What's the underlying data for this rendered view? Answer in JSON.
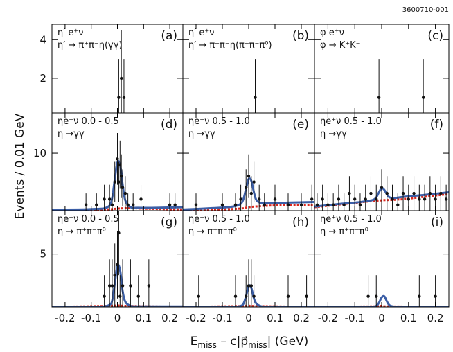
{
  "id_label": "3600710-001",
  "y_label": "Events / 0.01 GeV",
  "x_label_parts": [
    "E",
    "miss",
    " – c|p⃗",
    "miss",
    "| (GeV)"
  ],
  "chart_data": [
    {
      "type": "errorbar",
      "panel_label": "(a)",
      "lines": [
        "η′ e⁺ν",
        "η′ → π⁺π⁻η(γγ)"
      ],
      "xlim": [
        -0.25,
        0.25
      ],
      "ylim": [
        0.2,
        4.8
      ],
      "xticks": [
        -0.2,
        -0.1,
        0,
        0.1,
        0.2
      ],
      "yticks": [
        2,
        4
      ],
      "x": [
        0.005,
        0.015,
        0.025
      ],
      "values": [
        1,
        2,
        1
      ],
      "errors": [
        2,
        2.5,
        2
      ]
    },
    {
      "type": "errorbar",
      "panel_label": "(b)",
      "lines": [
        "η′ e⁺ν",
        "η′ → π⁺π⁻η(π⁺π⁻π⁰)"
      ],
      "xlim": [
        -0.25,
        0.25
      ],
      "ylim": [
        0.2,
        4.8
      ],
      "xticks": [
        -0.2,
        -0.1,
        0,
        0.1,
        0.2
      ],
      "yticks": [
        2,
        4
      ],
      "x": [
        0.025
      ],
      "values": [
        1
      ],
      "errors": [
        2
      ]
    },
    {
      "type": "errorbar",
      "panel_label": "(c)",
      "lines": [
        "φ e⁺ν",
        "φ → K⁺K⁻"
      ],
      "xlim": [
        -0.25,
        0.25
      ],
      "ylim": [
        0.2,
        4.8
      ],
      "xticks": [
        -0.2,
        -0.1,
        0,
        0.1,
        0.2
      ],
      "yticks": [
        2,
        4
      ],
      "x": [
        -0.01,
        0.155
      ],
      "values": [
        1,
        1
      ],
      "errors": [
        2,
        2
      ]
    },
    {
      "type": "errorbar",
      "panel_label": "(d)",
      "lines": [
        "ηe⁺ν 0.0 - 0.5",
        "η →γγ"
      ],
      "xlim": [
        -0.25,
        0.25
      ],
      "ylim": [
        0,
        17
      ],
      "xticks": [
        -0.2,
        -0.1,
        0,
        0.1,
        0.2
      ],
      "yticks": [
        10
      ],
      "x": [
        -0.12,
        -0.08,
        -0.05,
        -0.03,
        -0.02,
        -0.01,
        0,
        0.005,
        0.01,
        0.015,
        0.02,
        0.03,
        0.04,
        0.06,
        0.09,
        0.2,
        0.22
      ],
      "values": [
        1,
        1,
        2,
        2,
        1,
        5,
        9,
        5,
        8,
        6,
        4,
        3,
        1,
        1,
        2,
        1,
        1
      ],
      "errors": [
        2,
        2,
        2.5,
        2.5,
        2,
        3.5,
        4.5,
        3.5,
        4.2,
        3.8,
        3.2,
        3,
        2,
        2,
        2.5,
        2,
        2
      ],
      "fit": {
        "color": "#3b5ea6",
        "x": [
          -0.25,
          -0.15,
          -0.08,
          -0.05,
          -0.03,
          -0.02,
          -0.01,
          0,
          0.01,
          0.02,
          0.03,
          0.05,
          0.08,
          0.15,
          0.25
        ],
        "y": [
          0.15,
          0.2,
          0.3,
          0.4,
          0.9,
          2.2,
          5.5,
          8.4,
          8,
          4.5,
          1.8,
          0.6,
          0.5,
          0.5,
          0.6
        ]
      },
      "background": {
        "color": "#d9271d",
        "x": [
          -0.25,
          -0.05,
          0,
          0.05,
          0.1,
          0.25
        ],
        "y": [
          0,
          0.2,
          0.35,
          0.45,
          0.35,
          0.2
        ]
      }
    },
    {
      "type": "errorbar",
      "panel_label": "(e)",
      "lines": [
        "ηe⁺ν 0.5 - 1.0",
        "η →γγ"
      ],
      "xlim": [
        -0.25,
        0.25
      ],
      "ylim": [
        0,
        17
      ],
      "xticks": [
        -0.2,
        -0.1,
        0,
        0.1,
        0.2
      ],
      "yticks": [
        10
      ],
      "x": [
        -0.2,
        -0.1,
        -0.05,
        -0.03,
        -0.01,
        0,
        0.01,
        0.02,
        0.04,
        0.06,
        0.1,
        0.15,
        0.2,
        0.24
      ],
      "values": [
        1,
        1,
        1,
        2,
        4,
        6,
        3,
        5,
        2,
        1,
        2,
        1,
        1,
        2
      ],
      "errors": [
        2,
        2,
        2,
        2.5,
        3.2,
        3.8,
        3,
        3.5,
        2.5,
        2,
        2.5,
        2,
        2,
        2.5
      ],
      "fit": {
        "color": "#3b5ea6",
        "x": [
          -0.25,
          -0.15,
          -0.08,
          -0.05,
          -0.03,
          -0.02,
          -0.01,
          0,
          0.01,
          0.02,
          0.03,
          0.05,
          0.08,
          0.15,
          0.25
        ],
        "y": [
          0.2,
          0.4,
          0.6,
          0.8,
          1.2,
          2,
          3.8,
          5.5,
          5.2,
          3.2,
          1.8,
          1.3,
          1.3,
          1.4,
          1.5
        ]
      },
      "background": {
        "color": "#d9271d",
        "x": [
          -0.25,
          -0.05,
          0,
          0.05,
          0.1,
          0.25
        ],
        "y": [
          0,
          0.3,
          0.6,
          0.8,
          0.9,
          1
        ]
      }
    },
    {
      "type": "errorbar",
      "panel_label": "(f)",
      "lines": [
        "ηe⁺ν 0.5 - 1.0",
        "η →γγ"
      ],
      "xlim": [
        -0.25,
        0.25
      ],
      "ylim": [
        0,
        17
      ],
      "xticks": [
        -0.2,
        -0.1,
        0,
        0.1,
        0.2
      ],
      "yticks": [
        10
      ],
      "x": [
        -0.24,
        -0.22,
        -0.2,
        -0.18,
        -0.16,
        -0.14,
        -0.12,
        -0.1,
        -0.08,
        -0.06,
        -0.04,
        -0.02,
        0,
        0.02,
        0.04,
        0.06,
        0.08,
        0.1,
        0.12,
        0.14,
        0.16,
        0.18,
        0.2,
        0.22,
        0.24
      ],
      "values": [
        1,
        2,
        1,
        1,
        2,
        1,
        3,
        2,
        1,
        2,
        3,
        2,
        4,
        3,
        2,
        1,
        3,
        2,
        3,
        2,
        2,
        3,
        2,
        3,
        2
      ],
      "errors": [
        2,
        2.5,
        2,
        2,
        2.5,
        2,
        3,
        2.5,
        2,
        2.5,
        3,
        2.5,
        3.2,
        3,
        2.5,
        2,
        3,
        2.5,
        3,
        2.5,
        2.5,
        3,
        2.5,
        3,
        2.5
      ],
      "fit": {
        "color": "#3b5ea6",
        "x": [
          -0.25,
          -0.15,
          -0.08,
          -0.05,
          -0.03,
          -0.02,
          -0.01,
          0,
          0.01,
          0.02,
          0.03,
          0.05,
          0.08,
          0.15,
          0.25
        ],
        "y": [
          0.7,
          1.2,
          1.5,
          1.7,
          1.9,
          2.3,
          3.2,
          3.9,
          3.6,
          2.8,
          2.3,
          2.2,
          2.4,
          2.7,
          3.2
        ]
      },
      "background": {
        "color": "#d9271d",
        "x": [
          -0.25,
          -0.05,
          0,
          0.05,
          0.1,
          0.25
        ],
        "y": [
          0.6,
          1.6,
          1.8,
          1.9,
          2.1,
          2.9
        ]
      }
    },
    {
      "type": "errorbar",
      "panel_label": "(g)",
      "lines": [
        "ηe⁺ν 0.0 - 0.5",
        "η → π⁺π⁻π⁰"
      ],
      "xlim": [
        -0.25,
        0.25
      ],
      "ylim": [
        0,
        9.1
      ],
      "xticks": [
        -0.2,
        -0.1,
        0,
        0.1,
        0.2
      ],
      "yticks": [
        5
      ],
      "x": [
        -0.05,
        -0.03,
        -0.02,
        -0.01,
        0,
        0.005,
        0.01,
        0.02,
        0.05,
        0.08,
        0.12
      ],
      "values": [
        1,
        2,
        2,
        3,
        4,
        7,
        1,
        2,
        2,
        1,
        2
      ],
      "errors": [
        2,
        2.5,
        2.5,
        3,
        3.2,
        4,
        2,
        2.5,
        2.5,
        2,
        2.5
      ],
      "fit": {
        "color": "#3b5ea6",
        "x": [
          -0.25,
          -0.15,
          -0.08,
          -0.05,
          -0.03,
          -0.02,
          -0.01,
          0,
          0.01,
          0.02,
          0.03,
          0.05,
          0.08,
          0.15,
          0.25
        ],
        "y": [
          0,
          0,
          0,
          0.05,
          0.2,
          0.6,
          2.2,
          3.9,
          3.5,
          1.5,
          0.5,
          0.1,
          0.05,
          0.05,
          0.05
        ]
      },
      "background": {
        "color": "#d9271d",
        "x": [
          -0.25,
          -0.03,
          0,
          0.03,
          0.25
        ],
        "y": [
          0,
          0.1,
          0.15,
          0.1,
          0
        ]
      }
    },
    {
      "type": "errorbar",
      "panel_label": "(h)",
      "lines": [
        "ηe⁺ν 0.5 - 1.0",
        "η → π⁺π⁻π⁰"
      ],
      "xlim": [
        -0.25,
        0.25
      ],
      "ylim": [
        0,
        9.1
      ],
      "xticks": [
        -0.2,
        -0.1,
        0,
        0.1,
        0.2
      ],
      "yticks": [
        5
      ],
      "x": [
        -0.19,
        -0.05,
        -0.01,
        0,
        0.01,
        0.02,
        0.15,
        0.22
      ],
      "values": [
        1,
        1,
        1,
        2,
        2,
        1,
        1,
        1
      ],
      "errors": [
        2,
        2,
        2,
        2.5,
        2.5,
        2,
        2,
        2
      ],
      "fit": {
        "color": "#3b5ea6",
        "x": [
          -0.25,
          -0.15,
          -0.08,
          -0.05,
          -0.03,
          -0.02,
          -0.01,
          0,
          0.01,
          0.02,
          0.03,
          0.05,
          0.08,
          0.15,
          0.25
        ],
        "y": [
          0,
          0,
          0,
          0.02,
          0.1,
          0.3,
          1,
          2,
          1.8,
          0.8,
          0.3,
          0.05,
          0.02,
          0.02,
          0.02
        ]
      },
      "background": {
        "color": "#d9271d",
        "x": [
          -0.25,
          -0.03,
          0,
          0.03,
          0.25
        ],
        "y": [
          0,
          0.08,
          0.12,
          0.08,
          0
        ]
      }
    },
    {
      "type": "errorbar",
      "panel_label": "(i)",
      "lines": [
        "ηe⁺ν 0.5 - 1.0",
        "η → π⁺π⁻π⁰"
      ],
      "xlim": [
        -0.25,
        0.25
      ],
      "ylim": [
        0,
        9.1
      ],
      "xticks": [
        -0.2,
        -0.1,
        0,
        0.1,
        0.2
      ],
      "yticks": [
        5
      ],
      "x": [
        -0.05,
        -0.02,
        0.14,
        0.2
      ],
      "values": [
        1,
        1,
        1,
        1
      ],
      "errors": [
        2,
        2,
        2,
        2
      ],
      "fit": {
        "color": "#3b5ea6",
        "x": [
          -0.25,
          -0.15,
          -0.08,
          -0.05,
          -0.03,
          -0.02,
          -0.01,
          0,
          0.01,
          0.02,
          0.03,
          0.05,
          0.08,
          0.15,
          0.25
        ],
        "y": [
          0,
          0,
          0,
          0,
          0.02,
          0.1,
          0.4,
          0.9,
          1,
          0.5,
          0.15,
          0.02,
          0,
          0,
          0
        ]
      },
      "background": {
        "color": "#d9271d",
        "x": [
          -0.25,
          -0.03,
          0,
          0.03,
          0.25
        ],
        "y": [
          0,
          0.05,
          0.1,
          0.05,
          0
        ]
      }
    }
  ]
}
